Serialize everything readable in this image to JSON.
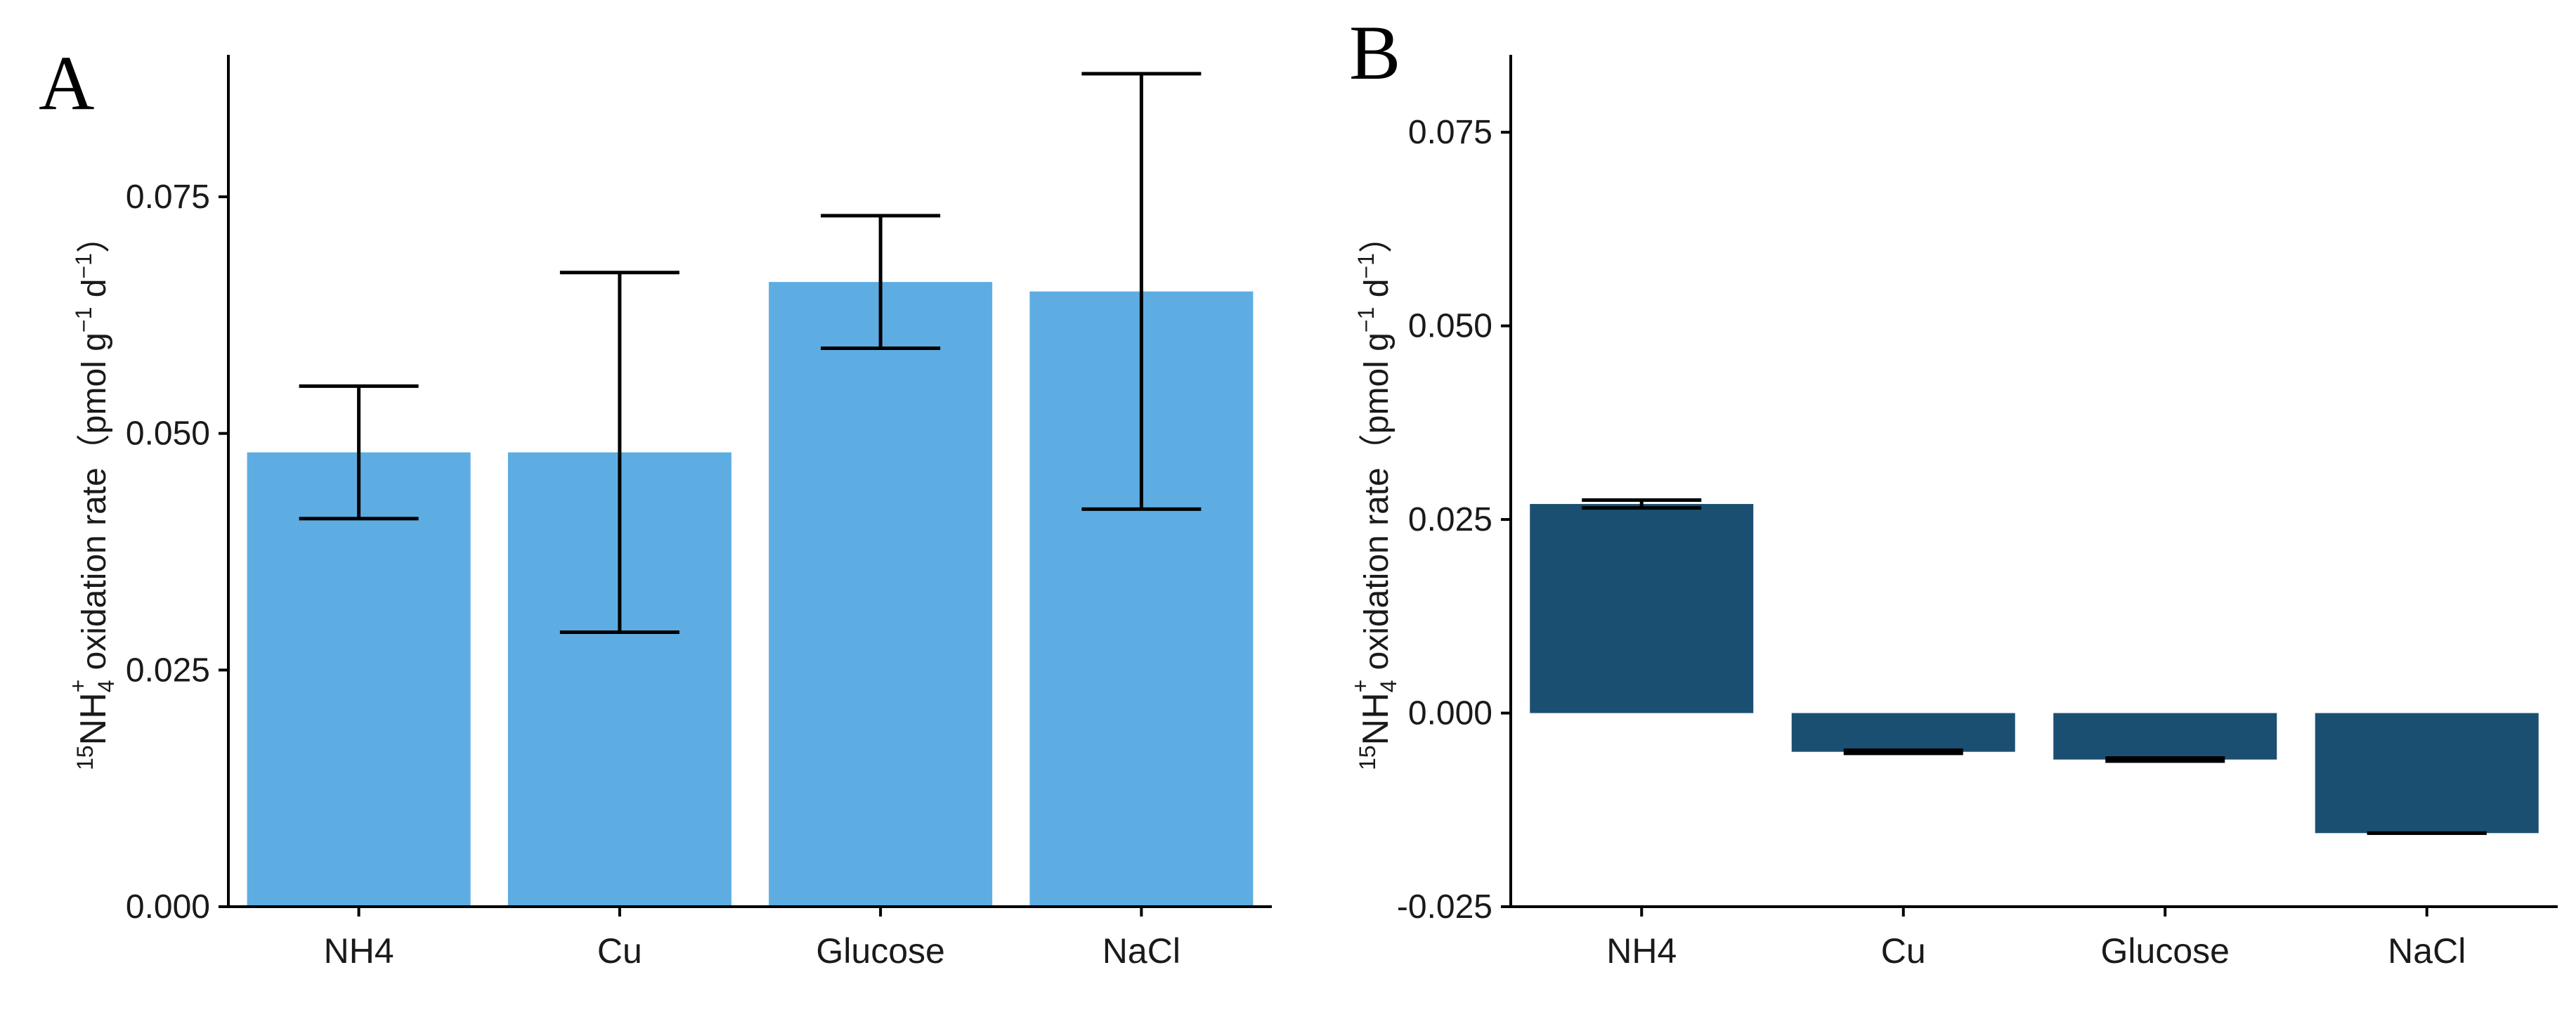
{
  "chart_data": [
    {
      "type": "bar",
      "panel": "A",
      "categories": [
        "NH4",
        "Cu",
        "Glucose",
        "NaCl"
      ],
      "values": [
        0.048,
        0.048,
        0.066,
        0.065
      ],
      "error_low": [
        0.041,
        0.029,
        0.059,
        0.042
      ],
      "error_high": [
        0.055,
        0.067,
        0.073,
        0.088
      ],
      "ylim": [
        0,
        0.09
      ],
      "yticks": [
        0,
        0.025,
        0.05,
        0.075
      ],
      "ytick_labels": [
        "0.000",
        "0.025",
        "0.050",
        "0.075"
      ],
      "ylabel": {
        "superscript_iso": "15",
        "species": "NH",
        "subscript": "4",
        "charge": "+",
        "text": " oxidation rate（pmol g",
        "exp1": "−1",
        "mid": " d",
        "exp2": "−1",
        "end": "）"
      },
      "xlabel": "",
      "bar_color": "#5dade2",
      "grid": false
    },
    {
      "type": "bar",
      "panel": "B",
      "categories": [
        "NH4",
        "Cu",
        "Glucose",
        "NaCl"
      ],
      "values": [
        0.027,
        -0.005,
        -0.006,
        -0.0155
      ],
      "error_low": [
        0.0265,
        -0.0052,
        -0.0062,
        -0.0155
      ],
      "error_high": [
        0.0275,
        -0.0048,
        -0.0058,
        -0.0155
      ],
      "ylim": [
        -0.025,
        0.085
      ],
      "yticks": [
        -0.025,
        0,
        0.025,
        0.05,
        0.075
      ],
      "ytick_labels": [
        "-0.025",
        "0.000",
        "0.025",
        "0.050",
        "0.075"
      ],
      "ylabel": {
        "superscript_iso": "15",
        "species": "NH",
        "subscript": "4",
        "charge": "+",
        "text": " oxidation rate（pmol g",
        "exp1": "−1",
        "mid": " d",
        "exp2": "−1",
        "end": "）"
      },
      "xlabel": "",
      "bar_color": "#1b4f72",
      "grid": false
    }
  ]
}
